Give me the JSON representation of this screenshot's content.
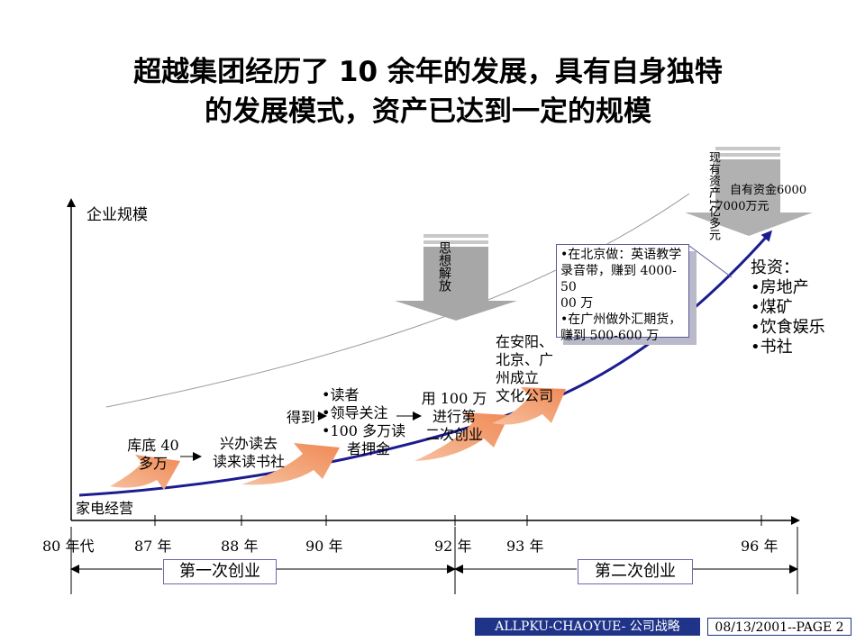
{
  "title": {
    "line1": "超越集团经历了 10 余年的发展，具有自身独特",
    "line2": "的发展模式，资产已达到一定的规模"
  },
  "axes": {
    "y_label": "企业规模"
  },
  "years": [
    "80 年代",
    "87 年",
    "88 年",
    "90 年",
    "92 年",
    "93 年",
    "96 年"
  ],
  "labels": {
    "start": "家电经营",
    "kudi_1": "库底 40",
    "kudi_2": "多万",
    "xingban_1": "兴办读去",
    "xingban_2": "读来读书社",
    "dedao": "得到",
    "readers": "•读者",
    "leaders": "•领导关注",
    "deposit_1": "•100 多万读",
    "deposit_2": "者押金",
    "second_1": "用 100 万",
    "second_2": "进行第",
    "second_3": "二次创业",
    "culture_1": "在安阳、",
    "culture_2": "北京、广",
    "culture_3": "州成立",
    "culture_4": "文化公司"
  },
  "arrows": {
    "thought": "思想解放",
    "assets_a": "现有资产1亿多元",
    "assets_b": "自有资金6000",
    "assets_c": "-7000万元"
  },
  "callout": {
    "line1": "•在北京做：英语教学",
    "line2": "录音带，赚到 4000-50",
    "line3": "00 万",
    "line4": "•在广州做外汇期货，",
    "line5": "赚到 500-600 万"
  },
  "investment": {
    "title": "投资：",
    "items": [
      "•房地产",
      "•煤矿",
      "•饮食娱乐",
      "•书社"
    ]
  },
  "phases": {
    "first": "第一次创业",
    "second": "第二次创业"
  },
  "footer": {
    "left": "ALLPKU-CHAOYUE- 公司战略",
    "right": "08/13/2001--PAGE 2"
  },
  "colors": {
    "curve": "#1c1c8e",
    "growth_arrow": "#f4a27a",
    "gray_arrow": "#a7a7a7",
    "footer_bg": "#1f3488"
  }
}
